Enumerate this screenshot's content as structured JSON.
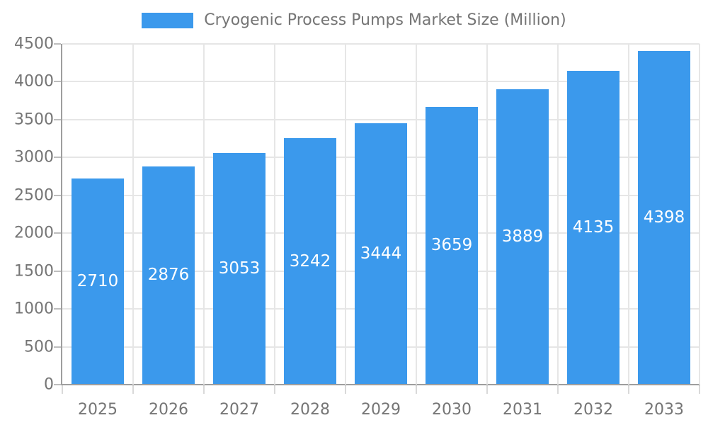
{
  "legend": {
    "label": "Cryogenic Process Pumps Market Size (Million)"
  },
  "colors": {
    "bar": "#3b99ec",
    "grid": "#e6e6e6",
    "axis": "#9e9e9e",
    "tick_text": "#757575",
    "value_label": "#ffffff",
    "background": "#ffffff"
  },
  "chart_data": {
    "type": "bar",
    "title": "Cryogenic Process Pumps Market Size (Million)",
    "categories": [
      "2025",
      "2026",
      "2027",
      "2028",
      "2029",
      "2030",
      "2031",
      "2032",
      "2033"
    ],
    "values": [
      2710,
      2876,
      3053,
      3242,
      3444,
      3659,
      3889,
      4135,
      4398
    ],
    "xlabel": "",
    "ylabel": "",
    "ylim": [
      0,
      4500
    ],
    "yticks": [
      0,
      500,
      1000,
      1500,
      2000,
      2500,
      3000,
      3500,
      4000,
      4500
    ],
    "grid": true,
    "legend_position": "top",
    "value_labels": "inside-center-white"
  }
}
